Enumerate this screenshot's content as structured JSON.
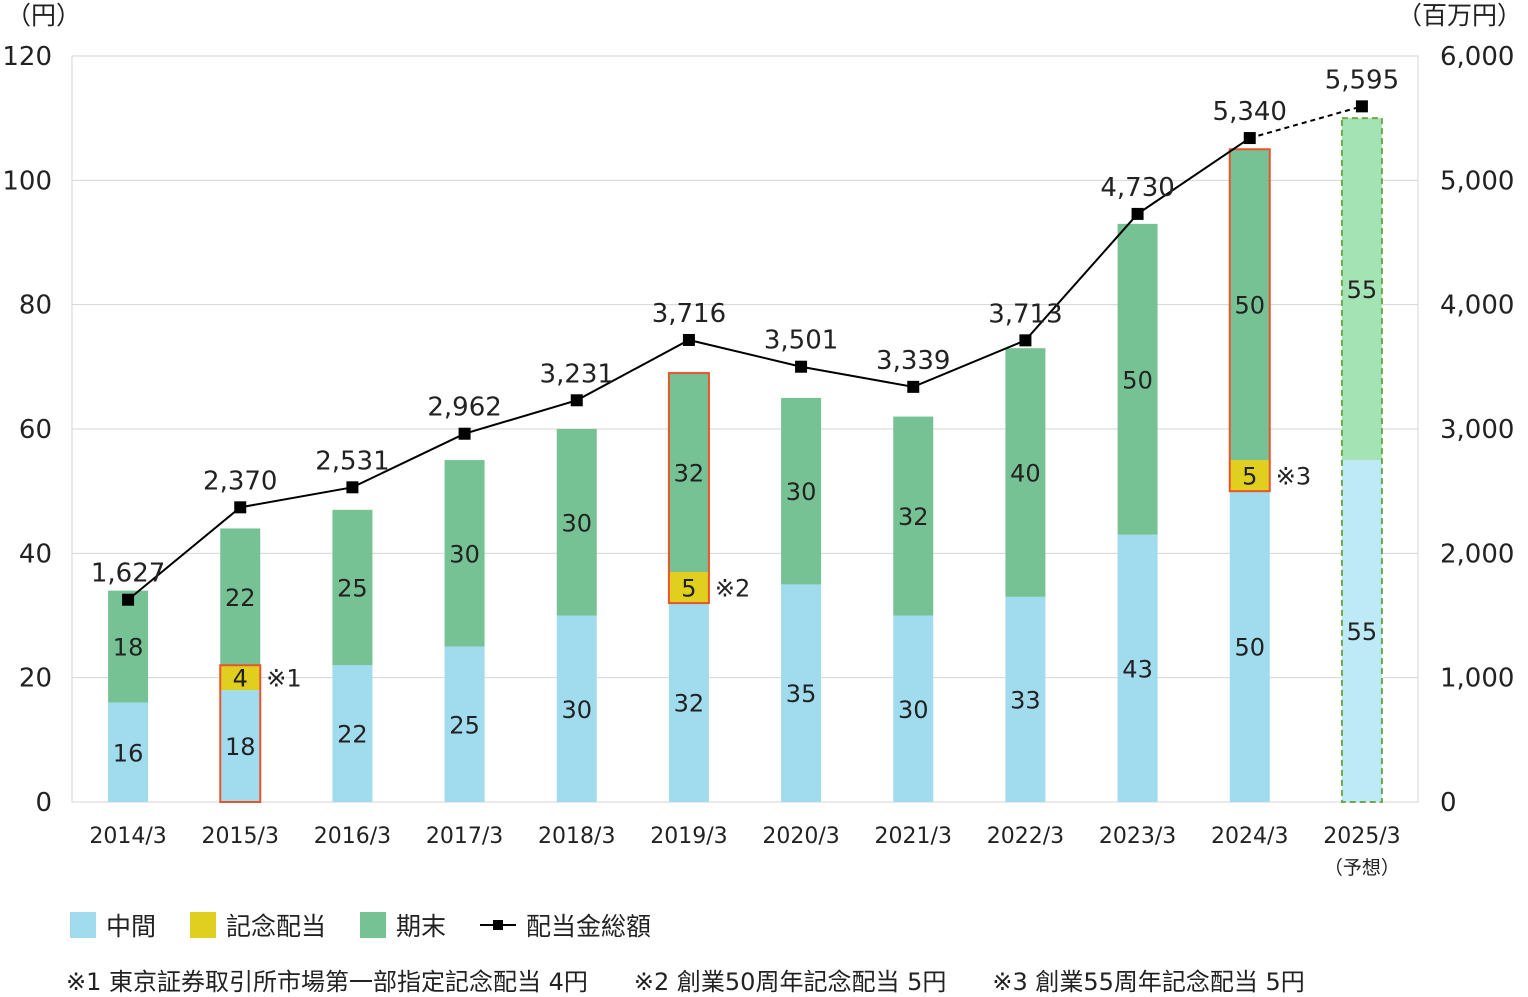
{
  "chart_data": {
    "type": "bar",
    "left_axis_unit": "（円）",
    "right_axis_unit": "（百万円）",
    "categories": [
      "2014/3",
      "2015/3",
      "2016/3",
      "2017/3",
      "2018/3",
      "2019/3",
      "2020/3",
      "2021/3",
      "2022/3",
      "2023/3",
      "2024/3",
      "2025/3"
    ],
    "forecast_sublabel": "（予想）",
    "left_ylim": [
      0,
      120
    ],
    "left_ticks": [
      "0",
      "20",
      "40",
      "60",
      "80",
      "100",
      "120"
    ],
    "right_ylim": [
      0,
      6000
    ],
    "right_ticks": [
      "0",
      "1,000",
      "2,000",
      "3,000",
      "4,000",
      "5,000",
      "6,000"
    ],
    "grid": true,
    "series": [
      {
        "name": "中間",
        "color": "#a0dcee",
        "forecast_color": "#bdeaf6",
        "values": [
          16,
          18,
          22,
          25,
          30,
          32,
          35,
          30,
          33,
          43,
          50,
          55
        ]
      },
      {
        "name": "記念配当",
        "color": "#e0cf1f",
        "values": [
          0,
          4,
          0,
          0,
          0,
          5,
          0,
          0,
          0,
          0,
          5,
          0
        ]
      },
      {
        "name": "期末",
        "color": "#77c294",
        "forecast_color": "#a4e3b4",
        "values": [
          18,
          22,
          25,
          30,
          30,
          32,
          30,
          32,
          40,
          50,
          50,
          55
        ]
      }
    ],
    "line_series": {
      "name": "配当金総額",
      "color": "#000000",
      "values": [
        1627,
        2370,
        2531,
        2962,
        3231,
        3716,
        3501,
        3339,
        3713,
        4730,
        5340,
        5595
      ],
      "labels": [
        "1,627",
        "2,370",
        "2,531",
        "2,962",
        "3,231",
        "3,716",
        "3,501",
        "3,339",
        "3,713",
        "4,730",
        "5,340",
        "5,595"
      ]
    },
    "annotations": [
      {
        "category_index": 1,
        "text": "※1"
      },
      {
        "category_index": 5,
        "text": "※2"
      },
      {
        "category_index": 10,
        "text": "※3"
      }
    ],
    "forecast_index": 11,
    "highlight_color": "#e8552c",
    "forecast_border_color": "#6aaa4a"
  },
  "legend": [
    {
      "label": "中間",
      "kind": "box",
      "color": "#a0dcee"
    },
    {
      "label": "記念配当",
      "kind": "box",
      "color": "#e0cf1f"
    },
    {
      "label": "期末",
      "kind": "box",
      "color": "#77c294"
    },
    {
      "label": "配当金総額",
      "kind": "line",
      "color": "#000000"
    }
  ],
  "notes": [
    "※1 東京証券取引所市場第一部指定記念配当 4円",
    "※2 創業50周年記念配当 5円",
    "※3 創業55周年記念配当 5円"
  ]
}
